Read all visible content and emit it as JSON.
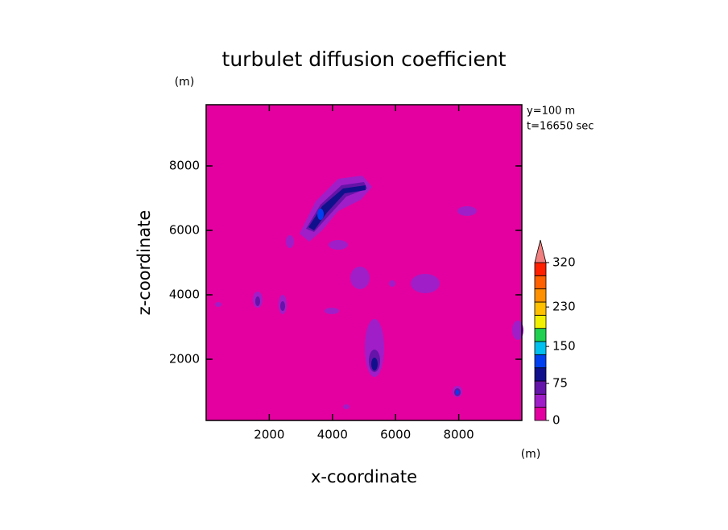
{
  "chart_data": {
    "type": "contour",
    "title": "turbulet diffusion coefficient",
    "x_label": "x-coordinate",
    "y_label": "z-coordinate",
    "x_unit": "(m)",
    "y_unit": "(m)",
    "annotations": [
      "y=100 m",
      "t=16650 sec"
    ],
    "xlim": [
      0,
      10000
    ],
    "ylim": [
      100,
      9900
    ],
    "xticks": [
      2000,
      4000,
      6000,
      8000
    ],
    "yticks": [
      2000,
      4000,
      6000,
      8000
    ],
    "colorbar": {
      "lim": [
        0,
        320
      ],
      "ticks": [
        0,
        75,
        150,
        230,
        320
      ],
      "extend": "max",
      "colors": [
        "#e400a0",
        "#a01ec8",
        "#6414a8",
        "#10108c",
        "#0040f0",
        "#00c0f0",
        "#20d050",
        "#f0f000",
        "#ffc000",
        "#ff9000",
        "#ff6000",
        "#ff2000"
      ],
      "extend_color": "#f08080"
    }
  }
}
